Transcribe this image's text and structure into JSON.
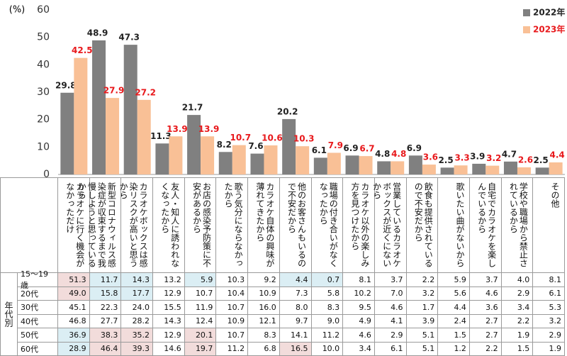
{
  "chart_data": {
    "type": "bar",
    "y_label": "(%)",
    "categories": [
      "カラオケに行く機会がなかっただけ",
      "新型コロナウィルス感染症が収束するまで我慢しようと思っているから",
      "カラオケボックスは感染リスクが高いと思うから",
      "友人・知人に誘われなくなったから",
      "お店の感染予防策に不安があるから",
      "歌う気分にならなかったから",
      "カラオケ自体の興味が薄れてきたから",
      "他のお客さんもいるので不安だから",
      "職場の付き合いがなくなったから",
      "カラオケ以外の楽しみ方を見つけたから",
      "営業しているカラオケボックスが近くにないから",
      "飲食も提供されているので不安だから",
      "歌いたい曲がないから",
      "自宅でカラオケを楽しんでいるから",
      "学校や職場から禁止されているから",
      "その他"
    ],
    "series": [
      {
        "name": "2022年",
        "color": "#808080",
        "label_color": "#222222",
        "values": [
          29.8,
          48.9,
          47.3,
          11.3,
          21.7,
          8.2,
          7.6,
          20.2,
          6.1,
          6.9,
          4.8,
          6.9,
          2.5,
          3.9,
          4.7,
          2.5
        ]
      },
      {
        "name": "2023年",
        "color": "#f9c096",
        "label_color": "#e8191c",
        "values": [
          42.5,
          27.9,
          27.2,
          13.9,
          13.9,
          10.7,
          10.6,
          10.3,
          7.9,
          6.7,
          4.8,
          3.6,
          3.3,
          3.2,
          2.6,
          4.4
        ]
      }
    ],
    "ylim": [
      0,
      60
    ],
    "yticks": [
      0,
      10,
      20,
      30,
      40,
      50,
      60
    ],
    "grid": false
  },
  "table": {
    "row_group_label": "年代別",
    "rows": [
      {
        "label": "15〜19歳",
        "values": [
          "51.3",
          "11.7",
          "14.3",
          "13.2",
          "5.9",
          "10.3",
          "9.2",
          "4.4",
          "0.7",
          "8.1",
          "3.7",
          "2.2",
          "5.9",
          "3.7",
          "4.0",
          "8.1"
        ]
      },
      {
        "label": "20代",
        "values": [
          "49.0",
          "15.8",
          "17.7",
          "12.9",
          "10.7",
          "10.4",
          "10.9",
          "7.3",
          "5.8",
          "10.2",
          "7.0",
          "3.2",
          "5.6",
          "4.6",
          "2.9",
          "6.1"
        ]
      },
      {
        "label": "30代",
        "values": [
          "45.1",
          "22.3",
          "24.0",
          "15.5",
          "11.9",
          "10.7",
          "16.0",
          "8.0",
          "8.3",
          "9.5",
          "4.6",
          "1.7",
          "4.4",
          "3.6",
          "3.4",
          "5.3"
        ]
      },
      {
        "label": "40代",
        "values": [
          "46.8",
          "27.7",
          "28.2",
          "14.3",
          "12.4",
          "10.9",
          "12.1",
          "9.7",
          "9.0",
          "4.9",
          "4.1",
          "3.9",
          "2.4",
          "2.7",
          "2.2",
          "3.2"
        ]
      },
      {
        "label": "50代",
        "values": [
          "36.9",
          "38.3",
          "35.2",
          "12.9",
          "20.1",
          "10.7",
          "8.3",
          "14.1",
          "11.2",
          "4.6",
          "2.9",
          "5.1",
          "1.5",
          "2.7",
          "1.9",
          "2.9"
        ]
      },
      {
        "label": "60代",
        "values": [
          "28.9",
          "46.4",
          "39.3",
          "14.6",
          "19.7",
          "11.2",
          "6.8",
          "16.5",
          "10.0",
          "3.4",
          "6.1",
          "5.1",
          "1.2",
          "2.2",
          "1.5",
          "1.9"
        ]
      }
    ],
    "cell_colors": [
      [
        "#f2dcdb",
        "#dbeef4",
        "#dbeef4",
        null,
        "#dbeef4",
        null,
        null,
        "#dbeef4",
        "#dbeef4",
        null,
        null,
        null,
        null,
        null,
        null,
        null
      ],
      [
        "#f2dcdb",
        "#dbeef4",
        "#dbeef4",
        null,
        null,
        null,
        null,
        null,
        null,
        null,
        null,
        null,
        null,
        null,
        null,
        null
      ],
      [
        null,
        null,
        null,
        null,
        null,
        null,
        null,
        null,
        null,
        null,
        null,
        null,
        null,
        null,
        null,
        null
      ],
      [
        null,
        null,
        null,
        null,
        null,
        null,
        null,
        null,
        null,
        null,
        null,
        null,
        null,
        null,
        null,
        null
      ],
      [
        "#dbeef4",
        "#f2dcdb",
        "#f2dcdb",
        null,
        "#f2dcdb",
        null,
        null,
        null,
        null,
        null,
        null,
        null,
        null,
        null,
        null,
        null
      ],
      [
        "#dbeef4",
        "#f2dcdb",
        "#f2dcdb",
        null,
        "#f2dcdb",
        null,
        null,
        "#f2dcdb",
        null,
        null,
        null,
        null,
        null,
        null,
        null,
        null
      ]
    ]
  }
}
